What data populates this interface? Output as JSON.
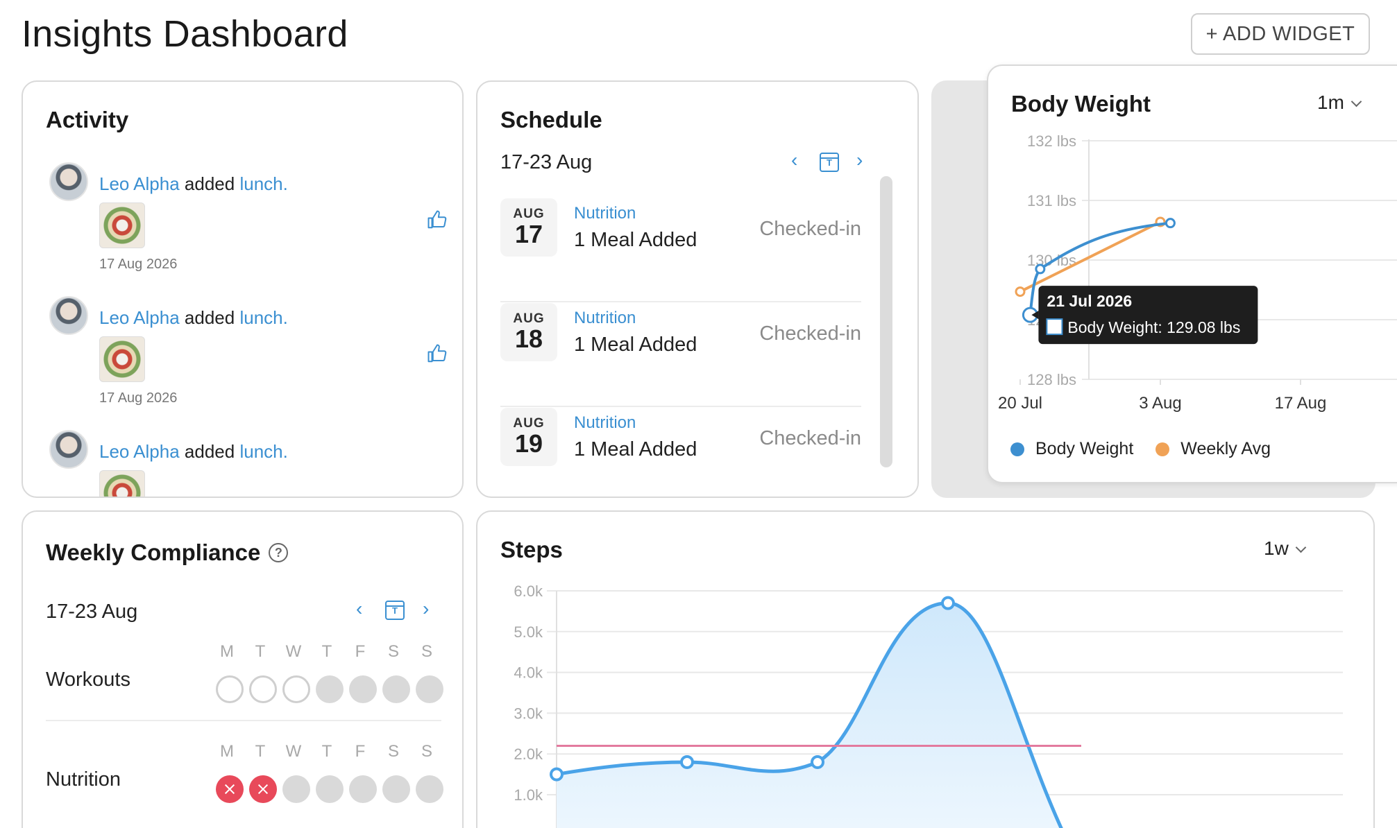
{
  "page": {
    "title": "Insights Dashboard",
    "add_widget_label": "+ ADD WIDGET"
  },
  "activity": {
    "title": "Activity",
    "items": [
      {
        "user": "Leo Alpha",
        "verb": "added",
        "object": "lunch.",
        "date": "17 Aug 2026"
      },
      {
        "user": "Leo Alpha",
        "verb": "added",
        "object": "lunch.",
        "date": "17 Aug 2026"
      },
      {
        "user": "Leo Alpha",
        "verb": "added",
        "object": "lunch.",
        "date": ""
      }
    ],
    "icons": {
      "like": "thumbs-up-icon",
      "avatar": "avatar",
      "photo": "food-photo"
    }
  },
  "schedule": {
    "title": "Schedule",
    "range": "17-23 Aug",
    "rows": [
      {
        "month": "AUG",
        "day": "17",
        "category": "Nutrition",
        "description": "1 Meal Added",
        "status": "Checked-in"
      },
      {
        "month": "AUG",
        "day": "18",
        "category": "Nutrition",
        "description": "1 Meal Added",
        "status": "Checked-in"
      },
      {
        "month": "AUG",
        "day": "19",
        "category": "Nutrition",
        "description": "1 Meal Added",
        "status": "Checked-in"
      }
    ]
  },
  "body_weight": {
    "title": "Body Weight",
    "range": "1m",
    "tooltip": {
      "date": "21 Jul 2026",
      "label": "Body Weight: 129.08 lbs"
    },
    "legend": [
      "Body Weight",
      "Weekly Avg"
    ]
  },
  "compliance": {
    "title": "Weekly Compliance",
    "range": "17-23 Aug",
    "days": [
      "M",
      "T",
      "W",
      "T",
      "F",
      "S",
      "S"
    ],
    "workouts": {
      "label": "Workouts",
      "states": [
        "empty",
        "empty",
        "empty",
        "none",
        "none",
        "none",
        "none"
      ]
    },
    "nutrition": {
      "label": "Nutrition",
      "states": [
        "miss",
        "miss",
        "none",
        "none",
        "none",
        "none",
        "none"
      ]
    }
  },
  "steps": {
    "title": "Steps",
    "range": "1w"
  },
  "colors": {
    "accent": "#3a8fd1",
    "weight_line": "#3d8fd0",
    "avg_line": "#f0a256",
    "steps_line": "#4aa3e8",
    "target_line": "#e37a9e",
    "miss": "#e8495a"
  },
  "chart_data": [
    {
      "type": "line",
      "title": "Body Weight",
      "ylabel": "",
      "ylim": [
        128,
        132
      ],
      "y_ticks": [
        "132 lbs",
        "131 lbs",
        "130 lbs",
        "129 lbs",
        "128 lbs"
      ],
      "x_ticks": [
        "20 Jul",
        "3 Aug",
        "17 Aug"
      ],
      "series": [
        {
          "name": "Body Weight",
          "x": [
            "2026-07-21",
            "2026-07-22",
            "2026-08-04"
          ],
          "y": [
            129.08,
            129.85,
            130.62
          ]
        },
        {
          "name": "Weekly Avg",
          "x": [
            "2026-07-20",
            "2026-08-03"
          ],
          "y": [
            129.47,
            130.64
          ]
        }
      ],
      "legend": "bottom",
      "grid": true
    },
    {
      "type": "area",
      "title": "Steps",
      "ylim": [
        1000,
        6000
      ],
      "y_ticks": [
        "6.0k",
        "5.0k",
        "4.0k",
        "3.0k",
        "2.0k",
        "1.0k"
      ],
      "series": [
        {
          "name": "",
          "x": [
            0,
            1,
            2,
            3,
            4
          ],
          "y": [
            1500,
            1800,
            1800,
            5700,
            0
          ]
        }
      ],
      "target": 2200,
      "grid": true
    }
  ]
}
